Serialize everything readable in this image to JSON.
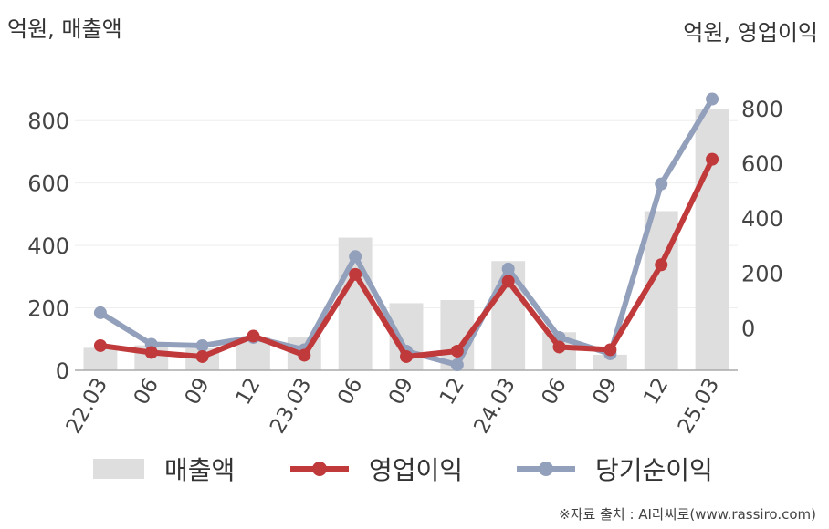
{
  "units": {
    "left": "억원, 매출액",
    "right": "억원, 영업이익"
  },
  "colors": {
    "revenue": "#dedede",
    "operating_profit": "#c0393b",
    "net_income": "#93a0bb",
    "axis": "#aaaaaa",
    "grid": "#eeeeee"
  },
  "legend": {
    "revenue": "매출액",
    "operating_profit": "영업이익",
    "net_income": "당기순이익"
  },
  "source": "※자료 출처 : AI라씨로(www.rassiro.com)",
  "chart_data": {
    "type": "bar",
    "categories": [
      "22.03",
      "06",
      "09",
      "12",
      "23.03",
      "06",
      "09",
      "12",
      "24.03",
      "06",
      "09",
      "12",
      "25.03"
    ],
    "left_axis": {
      "ticks": [
        0,
        200,
        400,
        600,
        800
      ],
      "ylim": [
        0,
        900
      ]
    },
    "right_axis": {
      "ticks": [
        0,
        200,
        400,
        600,
        800
      ],
      "ylim": [
        -155,
        870
      ]
    },
    "grid": true,
    "series": [
      {
        "name": "매출액",
        "type": "bar",
        "axis": "left",
        "values": [
          72,
          80,
          70,
          105,
          105,
          425,
          215,
          225,
          350,
          122,
          50,
          510,
          838
        ]
      },
      {
        "name": "영업이익",
        "type": "line",
        "axis": "right",
        "values": [
          -65,
          -90,
          -105,
          -30,
          -100,
          195,
          -105,
          -85,
          170,
          -70,
          -80,
          230,
          615
        ]
      },
      {
        "name": "당기순이익",
        "type": "line",
        "axis": "right",
        "values": [
          55,
          -60,
          -65,
          -35,
          -80,
          260,
          -85,
          -135,
          215,
          -35,
          -95,
          525,
          835
        ]
      }
    ]
  }
}
